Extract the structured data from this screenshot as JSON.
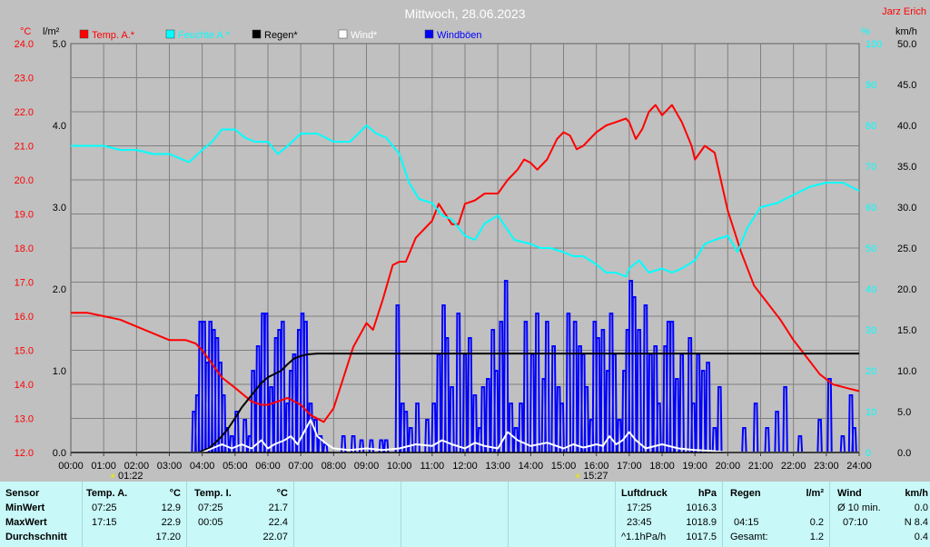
{
  "title": "Mittwoch, 28.06.2023",
  "author": "Jarz Erich",
  "units": {
    "temp": "°C",
    "rain": "l/m²",
    "hum": "%",
    "wind": "km/h"
  },
  "legend": [
    {
      "label": "Temp. A.*",
      "color": "#ff0000"
    },
    {
      "label": "Feuchte A.*",
      "color": "#00ffff"
    },
    {
      "label": "Regen*",
      "color": "#000000"
    },
    {
      "label": "Wind*",
      "color": "#ffffff"
    },
    {
      "label": "Windböen",
      "color": "#0000ff"
    }
  ],
  "sunrise": "01:22",
  "sunset": "15:27",
  "chart_data": {
    "type": "line",
    "x_ticks": [
      "00:00",
      "01:00",
      "02:00",
      "03:00",
      "04:00",
      "05:00",
      "06:00",
      "07:00",
      "08:00",
      "09:00",
      "10:00",
      "11:00",
      "12:00",
      "13:00",
      "14:00",
      "15:00",
      "16:00",
      "17:00",
      "18:00",
      "19:00",
      "20:00",
      "21:00",
      "22:00",
      "23:00",
      "24:00"
    ],
    "axes": {
      "temp": {
        "label": "°C",
        "range": [
          12.0,
          24.0
        ],
        "ticks": [
          "12.0",
          "13.0",
          "14.0",
          "15.0",
          "16.0",
          "17.0",
          "18.0",
          "19.0",
          "20.0",
          "21.0",
          "22.0",
          "23.0",
          "24.0"
        ]
      },
      "rain": {
        "label": "l/m²",
        "range": [
          0.0,
          5.0
        ],
        "ticks": [
          "0.0",
          "1.0",
          "2.0",
          "3.0",
          "4.0",
          "5.0"
        ]
      },
      "hum": {
        "label": "%",
        "range": [
          0,
          100
        ],
        "ticks": [
          "0",
          "10",
          "20",
          "30",
          "40",
          "50",
          "60",
          "70",
          "80",
          "90",
          "100"
        ]
      },
      "wind": {
        "label": "km/h",
        "range": [
          0.0,
          50.0
        ],
        "ticks": [
          "0.0",
          "5.0",
          "10.0",
          "15.0",
          "20.0",
          "25.0",
          "30.0",
          "35.0",
          "40.0",
          "45.0",
          "50.0"
        ]
      }
    },
    "grid": true,
    "series": [
      {
        "name": "Temp. A.*",
        "axis": "temp",
        "color": "#ff0000",
        "x": [
          0,
          0.5,
          1,
          1.5,
          2,
          2.5,
          3,
          3.5,
          3.8,
          4,
          4.3,
          4.6,
          5,
          5.5,
          5.8,
          6,
          6.3,
          6.6,
          7,
          7.3,
          7.7,
          8,
          8.3,
          8.6,
          9,
          9.2,
          9.5,
          9.8,
          10,
          10.2,
          10.5,
          10.8,
          11,
          11.2,
          11.4,
          11.6,
          11.8,
          12,
          12.3,
          12.6,
          13,
          13.3,
          13.6,
          13.8,
          14,
          14.2,
          14.5,
          14.8,
          15,
          15.2,
          15.4,
          15.6,
          15.8,
          16,
          16.3,
          16.6,
          16.9,
          17,
          17.2,
          17.4,
          17.6,
          17.8,
          18,
          18.3,
          18.6,
          18.9,
          19,
          19.3,
          19.6,
          20,
          20.4,
          20.8,
          21.2,
          21.6,
          22,
          22.4,
          22.8,
          23.2,
          23.6,
          24
        ],
        "y": [
          16.1,
          16.1,
          16.0,
          15.9,
          15.7,
          15.5,
          15.3,
          15.3,
          15.2,
          15.0,
          14.6,
          14.2,
          13.9,
          13.5,
          13.4,
          13.4,
          13.5,
          13.6,
          13.4,
          13.1,
          12.9,
          13.3,
          14.2,
          15.1,
          15.8,
          15.6,
          16.5,
          17.5,
          17.6,
          17.6,
          18.3,
          18.6,
          18.8,
          19.3,
          19.0,
          18.7,
          18.7,
          19.3,
          19.4,
          19.6,
          19.6,
          20.0,
          20.3,
          20.6,
          20.5,
          20.3,
          20.6,
          21.2,
          21.4,
          21.3,
          20.9,
          21.0,
          21.2,
          21.4,
          21.6,
          21.7,
          21.8,
          21.7,
          21.2,
          21.5,
          22.0,
          22.2,
          21.9,
          22.2,
          21.7,
          21.0,
          20.6,
          21.0,
          20.8,
          19.1,
          17.9,
          16.9,
          16.4,
          15.9,
          15.3,
          14.8,
          14.3,
          14.0,
          13.9,
          13.8
        ]
      },
      {
        "name": "Feuchte A.*",
        "axis": "hum",
        "color": "#00ffff",
        "x": [
          0,
          0.5,
          1,
          1.5,
          2,
          2.5,
          3,
          3.3,
          3.6,
          4,
          4.3,
          4.6,
          5,
          5.3,
          5.6,
          6,
          6.3,
          6.6,
          7,
          7.5,
          8,
          8.5,
          9,
          9.3,
          9.6,
          10,
          10.3,
          10.6,
          11,
          11.3,
          11.6,
          12,
          12.3,
          12.6,
          13,
          13.5,
          14,
          14.3,
          14.6,
          15,
          15.3,
          15.6,
          16,
          16.3,
          16.6,
          16.9,
          17,
          17.3,
          17.6,
          18,
          18.3,
          18.6,
          19,
          19.3,
          19.6,
          20,
          20.3,
          20.6,
          21,
          21.5,
          22,
          22.5,
          23,
          23.5,
          24
        ],
        "y": [
          75,
          75,
          75,
          74,
          74,
          73,
          73,
          72,
          71,
          74,
          76,
          79,
          79,
          77,
          76,
          76,
          73,
          75,
          78,
          78,
          76,
          76,
          80,
          78,
          77,
          73,
          66,
          62,
          61,
          58,
          57,
          53,
          52,
          56,
          58,
          52,
          51,
          50,
          50,
          49,
          48,
          48,
          46,
          44,
          44,
          43,
          45,
          47,
          44,
          45,
          44,
          45,
          47,
          51,
          52,
          53,
          49,
          55,
          60,
          61,
          63,
          65,
          66,
          66,
          64
        ]
      },
      {
        "name": "Regen*",
        "axis": "rain",
        "color": "#000000",
        "x": [
          0,
          3.9,
          4.0,
          4.2,
          4.4,
          4.6,
          4.8,
          5.0,
          5.2,
          5.4,
          5.6,
          5.8,
          6.0,
          6.2,
          6.4,
          6.6,
          6.8,
          7.0,
          7.2,
          7.5,
          7.8,
          8.0,
          24
        ],
        "y": [
          0,
          0,
          0.02,
          0.05,
          0.12,
          0.2,
          0.3,
          0.42,
          0.55,
          0.65,
          0.75,
          0.85,
          0.92,
          0.96,
          1.0,
          1.08,
          1.15,
          1.18,
          1.2,
          1.21,
          1.21,
          1.21,
          1.21
        ]
      },
      {
        "name": "Wind*",
        "axis": "wind",
        "color": "#ffffff",
        "x": [
          0,
          4.0,
          4.3,
          4.6,
          4.9,
          5.2,
          5.5,
          5.8,
          6.0,
          6.2,
          6.5,
          6.7,
          6.9,
          7.1,
          7.3,
          7.5,
          7.8,
          8.0,
          8.5,
          9,
          9.5,
          10,
          10.5,
          11,
          11.3,
          11.6,
          12,
          12.3,
          12.6,
          13,
          13.3,
          13.6,
          14,
          14.5,
          15,
          15.3,
          15.6,
          16,
          16.2,
          16.4,
          16.6,
          16.8,
          17.0,
          17.2,
          17.5,
          18,
          18.5,
          19,
          19.5,
          20,
          21,
          22,
          23,
          24
        ],
        "y": [
          0,
          0,
          0.5,
          1,
          0.5,
          1,
          0.5,
          1.5,
          0.5,
          1,
          1.5,
          2,
          1,
          2.5,
          4,
          2,
          1,
          0.5,
          0.3,
          0.5,
          0.3,
          0.5,
          1,
          0.8,
          1.5,
          1,
          0.5,
          1.2,
          0.8,
          0.5,
          2.5,
          1.5,
          0.8,
          1.2,
          0.5,
          1,
          0.6,
          1,
          0.8,
          2,
          1,
          1.5,
          2.5,
          1.5,
          0.5,
          1,
          0.5,
          0.3,
          0.2,
          0,
          0,
          0,
          0,
          0
        ]
      },
      {
        "name": "Windböen",
        "axis": "wind",
        "color": "#0000ff",
        "bursts": [
          [
            3.75,
            5
          ],
          [
            3.85,
            7
          ],
          [
            3.95,
            16
          ],
          [
            4.05,
            16
          ],
          [
            4.15,
            11
          ],
          [
            4.25,
            16
          ],
          [
            4.35,
            15
          ],
          [
            4.45,
            14
          ],
          [
            4.55,
            11
          ],
          [
            4.65,
            7
          ],
          [
            4.75,
            3
          ],
          [
            4.9,
            2
          ],
          [
            5.05,
            5
          ],
          [
            5.3,
            4
          ],
          [
            5.45,
            2
          ],
          [
            5.55,
            10
          ],
          [
            5.7,
            13
          ],
          [
            5.85,
            17
          ],
          [
            5.95,
            17
          ],
          [
            6.1,
            8
          ],
          [
            6.25,
            14
          ],
          [
            6.35,
            15
          ],
          [
            6.45,
            16
          ],
          [
            6.6,
            6
          ],
          [
            6.7,
            10
          ],
          [
            6.8,
            12
          ],
          [
            6.95,
            15
          ],
          [
            7.05,
            17
          ],
          [
            7.15,
            16
          ],
          [
            7.3,
            6
          ],
          [
            7.45,
            4
          ],
          [
            7.6,
            2
          ],
          [
            7.75,
            1
          ],
          [
            8.3,
            2
          ],
          [
            8.6,
            2
          ],
          [
            8.85,
            1.5
          ],
          [
            9.15,
            1.5
          ],
          [
            9.45,
            1.5
          ],
          [
            9.6,
            1.5
          ],
          [
            9.95,
            18
          ],
          [
            10.1,
            6
          ],
          [
            10.2,
            5
          ],
          [
            10.35,
            3
          ],
          [
            10.55,
            6
          ],
          [
            10.85,
            4
          ],
          [
            11.05,
            6
          ],
          [
            11.2,
            12
          ],
          [
            11.35,
            18
          ],
          [
            11.45,
            14
          ],
          [
            11.6,
            8
          ],
          [
            11.8,
            17
          ],
          [
            12.0,
            12
          ],
          [
            12.15,
            14
          ],
          [
            12.3,
            7
          ],
          [
            12.45,
            3
          ],
          [
            12.55,
            8
          ],
          [
            12.7,
            9
          ],
          [
            12.85,
            15
          ],
          [
            12.95,
            10
          ],
          [
            13.1,
            16
          ],
          [
            13.25,
            21
          ],
          [
            13.4,
            6
          ],
          [
            13.55,
            3
          ],
          [
            13.7,
            6
          ],
          [
            13.85,
            16
          ],
          [
            14.05,
            12
          ],
          [
            14.2,
            17
          ],
          [
            14.4,
            9
          ],
          [
            14.5,
            16
          ],
          [
            14.7,
            13
          ],
          [
            14.85,
            8
          ],
          [
            14.95,
            6
          ],
          [
            15.15,
            17
          ],
          [
            15.35,
            16
          ],
          [
            15.5,
            13
          ],
          [
            15.6,
            12
          ],
          [
            15.7,
            8
          ],
          [
            15.85,
            4
          ],
          [
            15.95,
            16
          ],
          [
            16.05,
            14
          ],
          [
            16.2,
            15
          ],
          [
            16.35,
            10
          ],
          [
            16.45,
            17
          ],
          [
            16.55,
            12
          ],
          [
            16.7,
            4
          ],
          [
            16.85,
            10
          ],
          [
            16.95,
            15
          ],
          [
            17.05,
            21
          ],
          [
            17.15,
            19
          ],
          [
            17.3,
            15
          ],
          [
            17.5,
            18
          ],
          [
            17.65,
            12
          ],
          [
            17.8,
            13
          ],
          [
            17.9,
            6
          ],
          [
            18.1,
            13
          ],
          [
            18.2,
            16
          ],
          [
            18.3,
            16
          ],
          [
            18.45,
            9
          ],
          [
            18.6,
            12
          ],
          [
            18.85,
            14
          ],
          [
            18.95,
            6
          ],
          [
            19.1,
            12
          ],
          [
            19.25,
            10
          ],
          [
            19.4,
            11
          ],
          [
            19.6,
            3
          ],
          [
            19.75,
            8
          ],
          [
            20.5,
            3
          ],
          [
            20.85,
            6
          ],
          [
            21.2,
            3
          ],
          [
            21.5,
            5
          ],
          [
            21.75,
            8
          ],
          [
            22.2,
            2
          ],
          [
            22.8,
            4
          ],
          [
            23.1,
            9
          ],
          [
            23.5,
            2
          ],
          [
            23.75,
            7
          ],
          [
            23.85,
            3
          ]
        ]
      }
    ]
  },
  "summary": {
    "col_sensor": {
      "header": "Sensor",
      "rows": [
        "MinWert",
        "MaxWert",
        "Durchschnitt"
      ]
    },
    "temp_a": {
      "header": "Temp. A.",
      "unit": "°C",
      "min_time": "07:25",
      "min_val": "12.9",
      "max_time": "17:15",
      "max_val": "22.9",
      "avg": "17.20"
    },
    "temp_i": {
      "header": "Temp. I.",
      "unit": "°C",
      "min_time": "07:25",
      "min_val": "21.7",
      "max_time": "00:05",
      "max_val": "22.4",
      "avg": "22.07"
    },
    "pressure": {
      "header": "Luftdruck",
      "unit": "hPa",
      "r1_time": "17:25",
      "r1_val": "1016.3",
      "r2_time": "23:45",
      "r2_val": "1018.9",
      "r3_label": "^1.1hPa/h",
      "r3_val": "1017.5"
    },
    "rain": {
      "header": "Regen",
      "unit": "l/m²",
      "r2_time": "04:15",
      "r2_val": "0.2",
      "r3_label": "Gesamt:",
      "r3_val": "1.2"
    },
    "wind": {
      "header": "Wind",
      "unit": "km/h",
      "r1_label": "Ø 10 min.",
      "r1_val": "0.0",
      "r2_time": "07:10",
      "r2_val": "N 8.4",
      "r3_val": "0.4"
    }
  }
}
